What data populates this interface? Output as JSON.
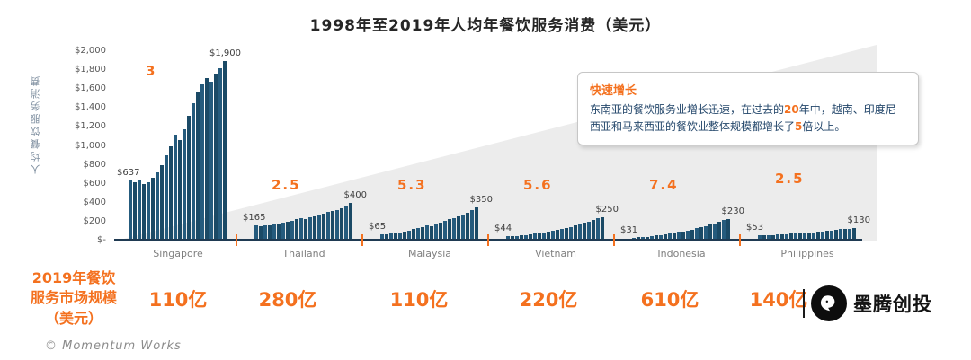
{
  "title": "1998年至2019年人均年餐饮服务消费（美元）",
  "y_axis": {
    "label": "人均餐饮服务消费",
    "ticks": [
      "$2,000",
      "$1,800",
      "$1,600",
      "$1,400",
      "$1,200",
      "$1,000",
      "$800",
      "$600",
      "$400",
      "$200",
      "$-"
    ]
  },
  "annotation": {
    "title": "快速增长",
    "body_parts": [
      {
        "text": "东南亚的餐饮服务业增长迅速，在过去的",
        "highlight": false
      },
      {
        "text": "20",
        "highlight": true
      },
      {
        "text": "年中，越南、印度尼西亚和马来西亚的餐饮业整体规模都增长了",
        "highlight": false
      },
      {
        "text": "5",
        "highlight": true
      },
      {
        "text": "倍以上。",
        "highlight": false
      }
    ]
  },
  "chart_data": {
    "type": "bar",
    "title": "1998年至2019年人均年餐饮服务消费（美元）",
    "ylabel": "人均餐饮服务消费",
    "ylim": [
      0,
      2000
    ],
    "year_range": "1998-2019",
    "groups": [
      {
        "country": "Singapore",
        "start_label": "$637",
        "end_label": "$1,900",
        "growth_multiple": "3",
        "market_size_2019": "110亿",
        "values": [
          637,
          615,
          640,
          600,
          620,
          660,
          720,
          800,
          900,
          1000,
          1120,
          1060,
          1180,
          1320,
          1450,
          1560,
          1650,
          1720,
          1680,
          1760,
          1820,
          1900
        ]
      },
      {
        "country": "Thailand",
        "start_label": "$165",
        "end_label": "$400",
        "growth_multiple": "2.5",
        "market_size_2019": "280亿",
        "values": [
          165,
          150,
          158,
          165,
          172,
          180,
          190,
          200,
          212,
          224,
          236,
          228,
          245,
          260,
          274,
          288,
          300,
          312,
          325,
          340,
          360,
          400
        ]
      },
      {
        "country": "Malaysia",
        "start_label": "$65",
        "end_label": "$350",
        "growth_multiple": "5.3",
        "market_size_2019": "110亿",
        "values": [
          65,
          70,
          76,
          83,
          90,
          98,
          108,
          120,
          133,
          147,
          160,
          155,
          172,
          190,
          207,
          224,
          240,
          257,
          274,
          295,
          320,
          350
        ]
      },
      {
        "country": "Vietnam",
        "start_label": "$44",
        "end_label": "$250",
        "growth_multiple": "5.6",
        "market_size_2019": "220亿",
        "values": [
          44,
          46,
          50,
          54,
          59,
          65,
          72,
          80,
          89,
          98,
          108,
          112,
          122,
          134,
          147,
          160,
          174,
          189,
          204,
          220,
          236,
          250
        ]
      },
      {
        "country": "Indonesia",
        "start_label": "$31",
        "end_label": "$230",
        "growth_multiple": "7.4",
        "market_size_2019": "610亿",
        "values": [
          31,
          34,
          38,
          42,
          47,
          53,
          59,
          66,
          74,
          83,
          92,
          97,
          106,
          117,
          129,
          142,
          156,
          170,
          184,
          199,
          215,
          230
        ]
      },
      {
        "country": "Philippines",
        "start_label": "$53",
        "end_label": "$130",
        "growth_multiple": "2.5",
        "market_size_2019": "140亿",
        "values": [
          53,
          55,
          57,
          60,
          63,
          66,
          69,
          73,
          77,
          81,
          85,
          83,
          89,
          94,
          99,
          104,
          109,
          114,
          119,
          123,
          127,
          130
        ]
      }
    ]
  },
  "bottom_left_label": {
    "lines": [
      "2019年餐饮",
      "服务市场规模",
      "（美元）"
    ]
  },
  "footer": {
    "credit": "© Momentum Works",
    "brand": "墨腾创投"
  },
  "colors": {
    "accent": "#F4711F",
    "bar_light": "#255B7D",
    "bar_dark": "#1B4A66",
    "text_dark": "#24476B",
    "axis_text": "#595959",
    "label_gray": "#7F7F7F"
  }
}
